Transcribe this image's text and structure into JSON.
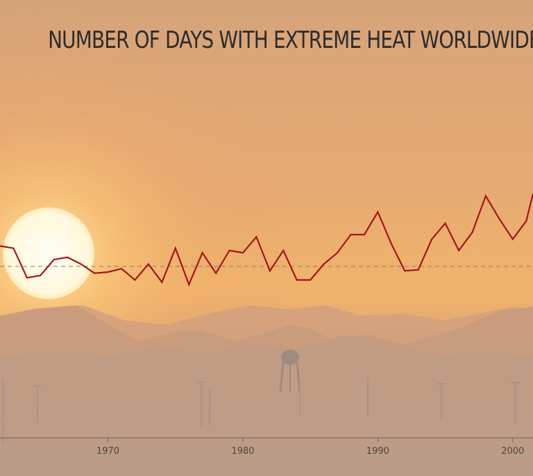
{
  "colors": {
    "line": "#a3141b",
    "sun": "#fffbe6",
    "sky_top": "#d5a57c",
    "sky_mid": "#f0b06a",
    "ground": "#b99b86",
    "baseline": "#8a7a6a"
  },
  "chart_data": {
    "type": "line",
    "title": "NUMBER OF DAYS WITH EXTREME HEAT WORLDWIDE",
    "xlabel": "",
    "ylabel": "",
    "xlim": [
      1962,
      2001.5
    ],
    "ylim": [
      0,
      100
    ],
    "baseline": 30,
    "x_ticks": [
      1970,
      1980,
      1990,
      2000
    ],
    "grid": false,
    "series": [
      {
        "x": [
          1962,
          1963,
          1964,
          1965,
          1966,
          1967,
          1968,
          1969,
          1970,
          1971,
          1972,
          1973,
          1974,
          1975,
          1976,
          1977,
          1978,
          1979,
          1980,
          1981,
          1982,
          1983,
          1984,
          1985,
          1986,
          1987,
          1988,
          1989,
          1990,
          1991,
          1992,
          1993,
          1994,
          1995,
          1996,
          1997,
          1998,
          1999,
          2000,
          2001,
          2001.5
        ],
        "values": [
          39,
          38,
          25,
          26,
          33,
          34,
          31,
          27,
          27.5,
          29,
          24,
          31,
          23,
          38,
          22,
          36,
          27,
          37,
          36,
          43,
          28,
          37,
          24,
          24,
          31,
          36,
          44,
          44,
          54,
          40,
          28,
          28.5,
          42,
          49,
          37,
          45,
          61,
          51,
          42,
          50,
          62
        ]
      }
    ]
  }
}
